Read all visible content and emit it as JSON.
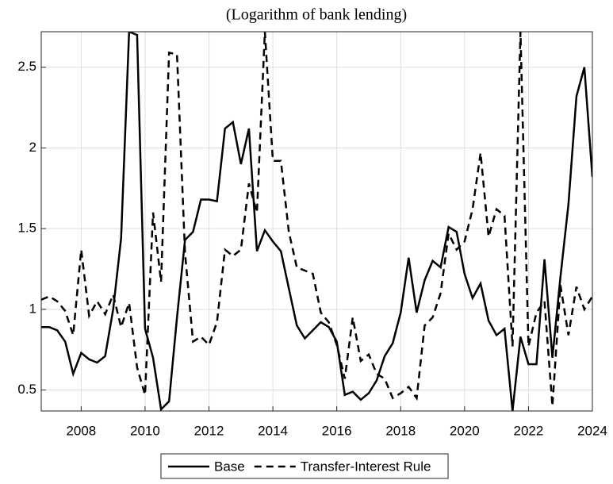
{
  "chart_data": {
    "type": "line",
    "title": "(Logarithm of bank lending)",
    "x": [
      2006.75,
      2007,
      2007.25,
      2007.5,
      2007.75,
      2008,
      2008.25,
      2008.5,
      2008.75,
      2009,
      2009.25,
      2009.5,
      2009.75,
      2010,
      2010.25,
      2010.5,
      2010.75,
      2011,
      2011.25,
      2011.5,
      2011.75,
      2012,
      2012.25,
      2012.5,
      2012.75,
      2013,
      2013.25,
      2013.5,
      2013.75,
      2014,
      2014.25,
      2014.5,
      2014.75,
      2015,
      2015.25,
      2015.5,
      2015.75,
      2016,
      2016.25,
      2016.5,
      2016.75,
      2017,
      2017.25,
      2017.5,
      2017.75,
      2018,
      2018.25,
      2018.5,
      2018.75,
      2019,
      2019.25,
      2019.5,
      2019.75,
      2020,
      2020.25,
      2020.5,
      2020.75,
      2021,
      2021.25,
      2021.5,
      2021.75,
      2022,
      2022.25,
      2022.5,
      2022.75,
      2023,
      2023.25,
      2023.5,
      2023.75,
      2024
    ],
    "series": [
      {
        "name": "Base",
        "color": "#000000",
        "dash": false,
        "values": [
          0.89,
          0.89,
          0.87,
          0.8,
          0.6,
          0.73,
          0.69,
          0.67,
          0.71,
          1.0,
          1.44,
          2.72,
          2.7,
          0.88,
          0.7,
          0.38,
          0.43,
          0.95,
          1.43,
          1.48,
          1.68,
          1.68,
          1.67,
          2.12,
          2.16,
          1.9,
          2.12,
          1.36,
          1.49,
          1.42,
          1.36,
          1.13,
          0.9,
          0.82,
          0.87,
          0.92,
          0.89,
          0.8,
          0.47,
          0.49,
          0.44,
          0.48,
          0.56,
          0.71,
          0.79,
          0.98,
          1.32,
          0.98,
          1.18,
          1.3,
          1.26,
          1.51,
          1.48,
          1.22,
          1.07,
          1.16,
          0.93,
          0.84,
          0.88,
          0.37,
          0.83,
          0.66,
          0.66,
          1.31,
          0.7,
          1.2,
          1.65,
          2.32,
          2.5,
          1.82
        ]
      },
      {
        "name": "Transfer-Interest Rule",
        "color": "#000000",
        "dash": true,
        "values": [
          1.06,
          1.08,
          1.05,
          0.99,
          0.84,
          1.37,
          0.96,
          1.05,
          0.97,
          1.09,
          0.89,
          1.04,
          0.64,
          0.47,
          1.6,
          1.17,
          2.59,
          2.58,
          1.35,
          0.8,
          0.83,
          0.78,
          0.92,
          1.37,
          1.33,
          1.37,
          1.78,
          1.6,
          2.72,
          1.92,
          1.92,
          1.48,
          1.26,
          1.24,
          1.22,
          0.98,
          0.92,
          0.78,
          0.57,
          0.95,
          0.68,
          0.72,
          0.6,
          0.57,
          0.45,
          0.48,
          0.52,
          0.45,
          0.9,
          0.95,
          1.1,
          1.47,
          1.37,
          1.42,
          1.62,
          1.97,
          1.45,
          1.62,
          1.58,
          0.77,
          2.72,
          0.77,
          0.98,
          1.05,
          0.4,
          1.15,
          0.84,
          1.14,
          1.0,
          1.08
        ]
      }
    ],
    "xlim": [
      2006.75,
      2024
    ],
    "xticks": [
      2008,
      2010,
      2012,
      2014,
      2016,
      2018,
      2020,
      2022,
      2024
    ],
    "ylim": [
      0.37,
      2.72
    ],
    "yticks": [
      0.5,
      1,
      1.5,
      2,
      2.5
    ],
    "grid": true,
    "legend": "bottom"
  }
}
